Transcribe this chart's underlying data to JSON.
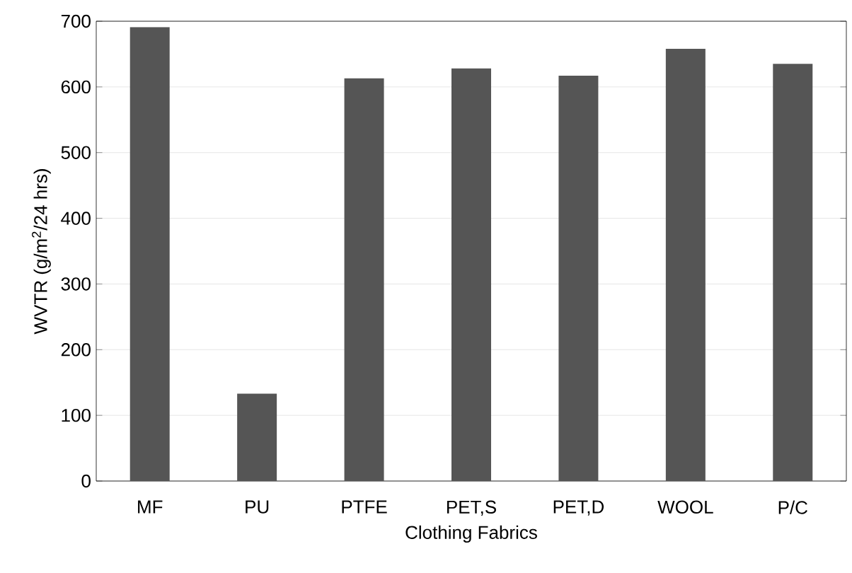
{
  "chart_data": {
    "type": "bar",
    "xlabel": "Clothing Fabrics",
    "ylabel": "WVTR (g/m$^{2}$/24 hrs)",
    "categories": [
      "MF",
      "PU",
      "PTFE",
      "PET,S",
      "PET,D",
      "WOOL",
      "P/C"
    ],
    "values": [
      691,
      133,
      613,
      628,
      617,
      658,
      635
    ],
    "color": "#555555",
    "ylim": [
      0,
      700
    ],
    "yticks": [
      0,
      100,
      200,
      300,
      400,
      500,
      600,
      700
    ],
    "grid": "y"
  }
}
